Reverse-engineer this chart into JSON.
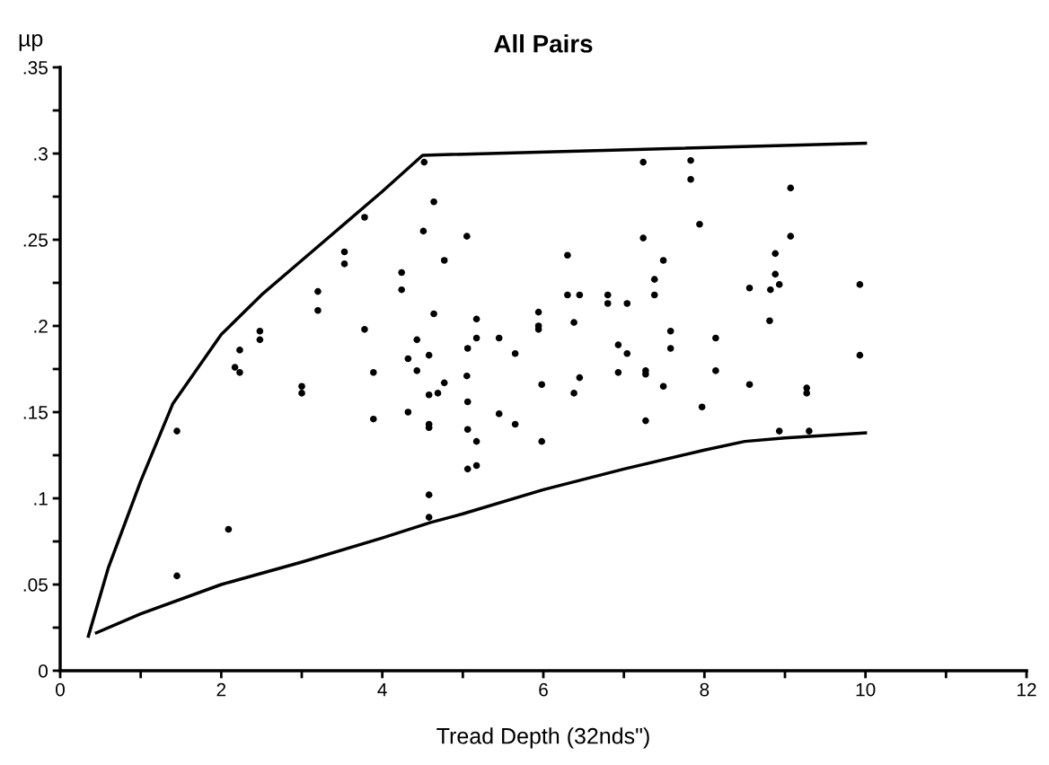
{
  "chart_data": {
    "type": "scatter",
    "title": "All Pairs",
    "xlabel": "Tread Depth (32nds\")",
    "ylabel": "µp",
    "xlim": [
      0,
      12
    ],
    "ylim": [
      0,
      0.35
    ],
    "xticks": [
      0,
      {
        "value": 1,
        "label": null
      },
      2,
      {
        "value": 3,
        "label": null
      },
      4,
      {
        "value": 5,
        "label": null
      },
      6,
      {
        "value": 7,
        "label": null
      },
      8,
      {
        "value": 9,
        "label": null
      },
      10,
      {
        "value": 11,
        "label": null
      },
      12
    ],
    "yticks": [
      {
        "value": 0,
        "label": "0"
      },
      {
        "value": 0.025,
        "label": null
      },
      {
        "value": 0.05,
        "label": ".05"
      },
      {
        "value": 0.075,
        "label": null
      },
      {
        "value": 0.1,
        "label": ".1"
      },
      {
        "value": 0.125,
        "label": null
      },
      {
        "value": 0.15,
        "label": ".15"
      },
      {
        "value": 0.175,
        "label": null
      },
      {
        "value": 0.2,
        "label": ".2"
      },
      {
        "value": 0.225,
        "label": null
      },
      {
        "value": 0.25,
        "label": ".25"
      },
      {
        "value": 0.275,
        "label": null
      },
      {
        "value": 0.3,
        "label": ".3"
      },
      {
        "value": 0.325,
        "label": null
      },
      {
        "value": 0.35,
        "label": ".35"
      }
    ],
    "grid": false,
    "legend": false,
    "marker": "circle",
    "series": [
      {
        "color": "#000000",
        "x": [
          4.52,
          3.78,
          4.51,
          3.53,
          3.53,
          4.24,
          4.24,
          3.2,
          3.2,
          3.78,
          2.48,
          2.48,
          2.23,
          4.43,
          2.17,
          2.23,
          4.32,
          4.43,
          3.89,
          3.0,
          3.0,
          4.32,
          3.89,
          1.45,
          2.09,
          1.45,
          4.64,
          5.05,
          4.77,
          4.64,
          5.17,
          5.17,
          5.45,
          5.06,
          5.65,
          4.58,
          5.05,
          4.77,
          4.58,
          4.69,
          5.06,
          4.58,
          4.58,
          5.45,
          5.65,
          5.06,
          5.17,
          5.06,
          5.17,
          5.98,
          5.94,
          5.94,
          5.94,
          5.98,
          6.3,
          6.3,
          6.45,
          6.38,
          6.45,
          6.38,
          7.24,
          7.24,
          7.83,
          7.83,
          7.94,
          7.49,
          7.38,
          7.38,
          6.8,
          6.8,
          7.04,
          7.58,
          7.58,
          6.93,
          7.04,
          6.93,
          7.27,
          7.27,
          7.49,
          7.27,
          7.97,
          4.58,
          4.58,
          9.07,
          9.07,
          8.88,
          8.88,
          8.93,
          8.82,
          8.56,
          9.93,
          8.81,
          8.14,
          8.14,
          9.93,
          8.56,
          9.27,
          9.27,
          8.93,
          9.3
        ],
        "values": [
          0.295,
          0.263,
          0.255,
          0.243,
          0.236,
          0.231,
          0.221,
          0.22,
          0.209,
          0.198,
          0.197,
          0.192,
          0.186,
          0.192,
          0.176,
          0.173,
          0.181,
          0.174,
          0.173,
          0.165,
          0.161,
          0.15,
          0.146,
          0.139,
          0.082,
          0.055,
          0.272,
          0.252,
          0.238,
          0.207,
          0.204,
          0.193,
          0.193,
          0.187,
          0.184,
          0.183,
          0.171,
          0.167,
          0.16,
          0.161,
          0.156,
          0.143,
          0.141,
          0.149,
          0.143,
          0.14,
          0.133,
          0.117,
          0.119,
          0.133,
          0.208,
          0.2,
          0.198,
          0.166,
          0.241,
          0.218,
          0.218,
          0.202,
          0.17,
          0.161,
          0.295,
          0.251,
          0.296,
          0.285,
          0.259,
          0.238,
          0.227,
          0.218,
          0.218,
          0.213,
          0.213,
          0.197,
          0.187,
          0.189,
          0.184,
          0.173,
          0.174,
          0.172,
          0.165,
          0.145,
          0.153,
          0.102,
          0.089,
          0.28,
          0.252,
          0.242,
          0.23,
          0.224,
          0.221,
          0.222,
          0.224,
          0.203,
          0.193,
          0.174,
          0.183,
          0.166,
          0.164,
          0.161,
          0.139,
          0.139
        ]
      },
      {
        "type": "line",
        "color": "#000000",
        "marker": "none",
        "line_style": "solid",
        "x": [
          0.35,
          0.6,
          1.0,
          1.4,
          2.0,
          2.5,
          3.0,
          3.5,
          4.0,
          4.5,
          10.0
        ],
        "values": [
          0.02,
          0.06,
          0.11,
          0.155,
          0.195,
          0.218,
          0.238,
          0.258,
          0.278,
          0.299,
          0.306
        ]
      },
      {
        "type": "line",
        "color": "#000000",
        "marker": "none",
        "line_style": "solid",
        "x": [
          0.45,
          1.0,
          2.0,
          3.0,
          4.0,
          4.6,
          5.0,
          6.0,
          7.0,
          8.0,
          8.5,
          9.0,
          10.0
        ],
        "values": [
          0.022,
          0.033,
          0.05,
          0.063,
          0.077,
          0.086,
          0.091,
          0.105,
          0.117,
          0.128,
          0.133,
          0.135,
          0.138
        ]
      }
    ]
  }
}
